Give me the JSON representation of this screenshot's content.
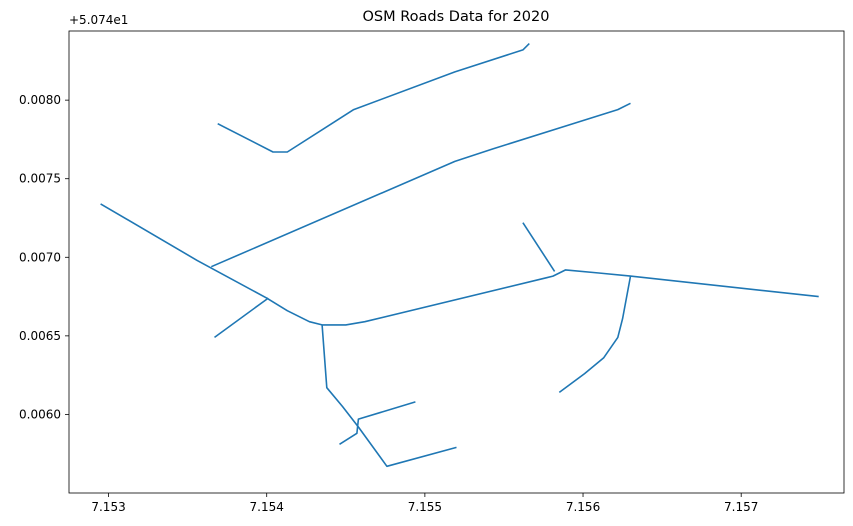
{
  "chart_data": {
    "type": "line",
    "title": "OSM Roads Data for 2020",
    "y_offset_label": "+5.074e1",
    "xlim": [
      7.15275,
      7.15765
    ],
    "ylim": [
      0.0055,
      0.00844
    ],
    "x_ticks": [
      7.153,
      7.154,
      7.155,
      7.156,
      7.157
    ],
    "x_tick_labels": [
      "7.153",
      "7.154",
      "7.155",
      "7.156",
      "7.157"
    ],
    "y_ticks": [
      0.006,
      0.0065,
      0.007,
      0.0075,
      0.008
    ],
    "y_tick_labels": [
      "0.0060",
      "0.0065",
      "0.0070",
      "0.0075",
      "0.0080"
    ],
    "line_color": "#1f77b4",
    "grid": false,
    "series": [
      {
        "points": [
          [
            7.15369,
            0.00785
          ],
          [
            7.15404,
            0.00767
          ],
          [
            7.15413,
            0.00767
          ],
          [
            7.15455,
            0.00794
          ],
          [
            7.15519,
            0.00818
          ],
          [
            7.15562,
            0.00832
          ],
          [
            7.15566,
            0.00836
          ]
        ]
      },
      {
        "points": [
          [
            7.15365,
            0.00694
          ],
          [
            7.15519,
            0.00761
          ],
          [
            7.15543,
            0.00769
          ],
          [
            7.15622,
            0.00794
          ],
          [
            7.1563,
            0.00798
          ]
        ]
      },
      {
        "points": [
          [
            7.15295,
            0.00734
          ],
          [
            7.15356,
            0.00698
          ],
          [
            7.154,
            0.00674
          ],
          [
            7.15413,
            0.00666
          ],
          [
            7.15427,
            0.00659
          ],
          [
            7.15435,
            0.00657
          ],
          [
            7.1545,
            0.00657
          ],
          [
            7.15462,
            0.00659
          ],
          [
            7.15577,
            0.00687
          ],
          [
            7.15581,
            0.00688
          ],
          [
            7.15589,
            0.00692
          ],
          [
            7.1561,
            0.0069
          ],
          [
            7.1563,
            0.00688
          ],
          [
            7.15749,
            0.00675
          ]
        ]
      },
      {
        "points": [
          [
            7.15367,
            0.00649
          ],
          [
            7.15401,
            0.00674
          ]
        ]
      },
      {
        "points": [
          [
            7.15562,
            0.00722
          ],
          [
            7.15582,
            0.00691
          ]
        ]
      },
      {
        "points": [
          [
            7.1563,
            0.00688
          ],
          [
            7.15625,
            0.00661
          ],
          [
            7.15622,
            0.00649
          ],
          [
            7.15613,
            0.00636
          ],
          [
            7.15601,
            0.00626
          ],
          [
            7.15585,
            0.00614
          ]
        ]
      },
      {
        "points": [
          [
            7.15435,
            0.00657
          ],
          [
            7.15438,
            0.00617
          ],
          [
            7.15448,
            0.00605
          ],
          [
            7.15458,
            0.00592
          ],
          [
            7.15476,
            0.00567
          ],
          [
            7.1552,
            0.00579
          ]
        ]
      },
      {
        "points": [
          [
            7.15446,
            0.00581
          ],
          [
            7.15457,
            0.00588
          ],
          [
            7.15458,
            0.00597
          ],
          [
            7.15494,
            0.00608
          ]
        ]
      }
    ]
  }
}
